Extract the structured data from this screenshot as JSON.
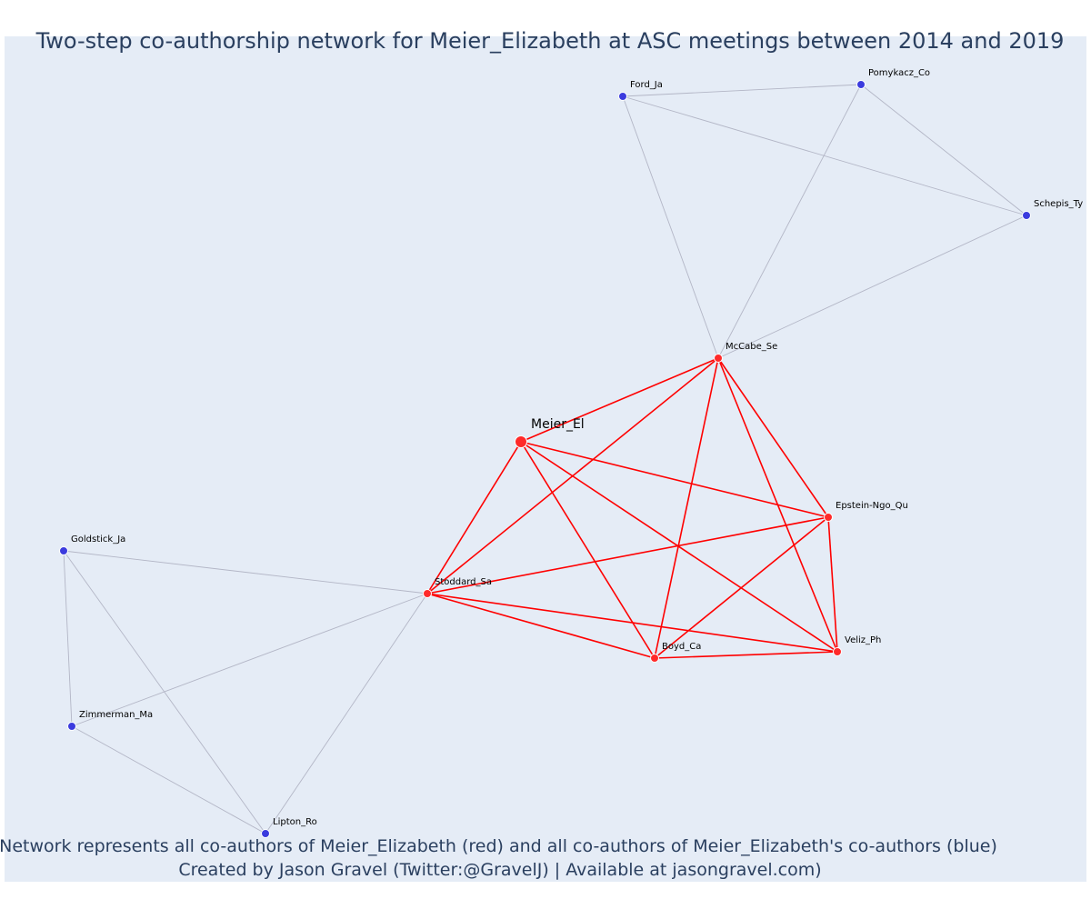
{
  "title": "Two-step co-authorship network for Meier_Elizabeth at ASC meetings between 2014 and 2019",
  "footer": {
    "line1": "Network represents all co-authors of Meier_Elizabeth (red) and all co-authors of Meier_Elizabeth's co-authors (blue)",
    "line2": "Created by Jason Gravel (Twitter:@GravelJ) | Available at jasongravel.com)"
  },
  "colors": {
    "plot_background": "#e5ecf6",
    "coauthor_node": "#ff2a2a",
    "second_step_node": "#3b3bde",
    "coauthor_edge": "#ff0000",
    "second_step_edge": "#b3b6c6",
    "text": "#2a3f5f"
  },
  "nodes": [
    {
      "id": "Meier_El",
      "label": "Meier_El",
      "group": "focal"
    },
    {
      "id": "McCabe_Se",
      "label": "McCabe_Se",
      "group": "coauthor"
    },
    {
      "id": "Epstein-Ngo_Qu",
      "label": "Epstein-Ngo_Qu",
      "group": "coauthor"
    },
    {
      "id": "Stoddard_Sa",
      "label": "Stoddard_Sa",
      "group": "coauthor"
    },
    {
      "id": "Boyd_Ca",
      "label": "Boyd_Ca",
      "group": "coauthor"
    },
    {
      "id": "Veliz_Ph",
      "label": "Veliz_Ph",
      "group": "coauthor"
    },
    {
      "id": "Ford_Ja",
      "label": "Ford_Ja",
      "group": "second"
    },
    {
      "id": "Pomykacz_Co",
      "label": "Pomykacz_Co",
      "group": "second"
    },
    {
      "id": "Schepis_Ty",
      "label": "Schepis_Ty",
      "group": "second"
    },
    {
      "id": "Goldstick_Ja",
      "label": "Goldstick_Ja",
      "group": "second"
    },
    {
      "id": "Zimmerman_Ma",
      "label": "Zimmerman_Ma",
      "group": "second"
    },
    {
      "id": "Lipton_Ro",
      "label": "Lipton_Ro",
      "group": "second"
    }
  ],
  "edges": [
    {
      "source": "Meier_El",
      "target": "McCabe_Se",
      "type": "coauthor"
    },
    {
      "source": "Meier_El",
      "target": "Epstein-Ngo_Qu",
      "type": "coauthor"
    },
    {
      "source": "Meier_El",
      "target": "Stoddard_Sa",
      "type": "coauthor"
    },
    {
      "source": "Meier_El",
      "target": "Boyd_Ca",
      "type": "coauthor"
    },
    {
      "source": "Meier_El",
      "target": "Veliz_Ph",
      "type": "coauthor"
    },
    {
      "source": "McCabe_Se",
      "target": "Epstein-Ngo_Qu",
      "type": "coauthor"
    },
    {
      "source": "McCabe_Se",
      "target": "Stoddard_Sa",
      "type": "coauthor"
    },
    {
      "source": "McCabe_Se",
      "target": "Boyd_Ca",
      "type": "coauthor"
    },
    {
      "source": "McCabe_Se",
      "target": "Veliz_Ph",
      "type": "coauthor"
    },
    {
      "source": "Epstein-Ngo_Qu",
      "target": "Stoddard_Sa",
      "type": "coauthor"
    },
    {
      "source": "Epstein-Ngo_Qu",
      "target": "Boyd_Ca",
      "type": "coauthor"
    },
    {
      "source": "Epstein-Ngo_Qu",
      "target": "Veliz_Ph",
      "type": "coauthor"
    },
    {
      "source": "Stoddard_Sa",
      "target": "Boyd_Ca",
      "type": "coauthor"
    },
    {
      "source": "Stoddard_Sa",
      "target": "Veliz_Ph",
      "type": "coauthor"
    },
    {
      "source": "Boyd_Ca",
      "target": "Veliz_Ph",
      "type": "coauthor"
    },
    {
      "source": "McCabe_Se",
      "target": "Ford_Ja",
      "type": "second"
    },
    {
      "source": "McCabe_Se",
      "target": "Pomykacz_Co",
      "type": "second"
    },
    {
      "source": "McCabe_Se",
      "target": "Schepis_Ty",
      "type": "second"
    },
    {
      "source": "Ford_Ja",
      "target": "Pomykacz_Co",
      "type": "second"
    },
    {
      "source": "Ford_Ja",
      "target": "Schepis_Ty",
      "type": "second"
    },
    {
      "source": "Pomykacz_Co",
      "target": "Schepis_Ty",
      "type": "second"
    },
    {
      "source": "Stoddard_Sa",
      "target": "Goldstick_Ja",
      "type": "second"
    },
    {
      "source": "Stoddard_Sa",
      "target": "Zimmerman_Ma",
      "type": "second"
    },
    {
      "source": "Stoddard_Sa",
      "target": "Lipton_Ro",
      "type": "second"
    },
    {
      "source": "Goldstick_Ja",
      "target": "Zimmerman_Ma",
      "type": "second"
    },
    {
      "source": "Goldstick_Ja",
      "target": "Lipton_Ro",
      "type": "second"
    },
    {
      "source": "Zimmerman_Ma",
      "target": "Lipton_Ro",
      "type": "second"
    }
  ]
}
